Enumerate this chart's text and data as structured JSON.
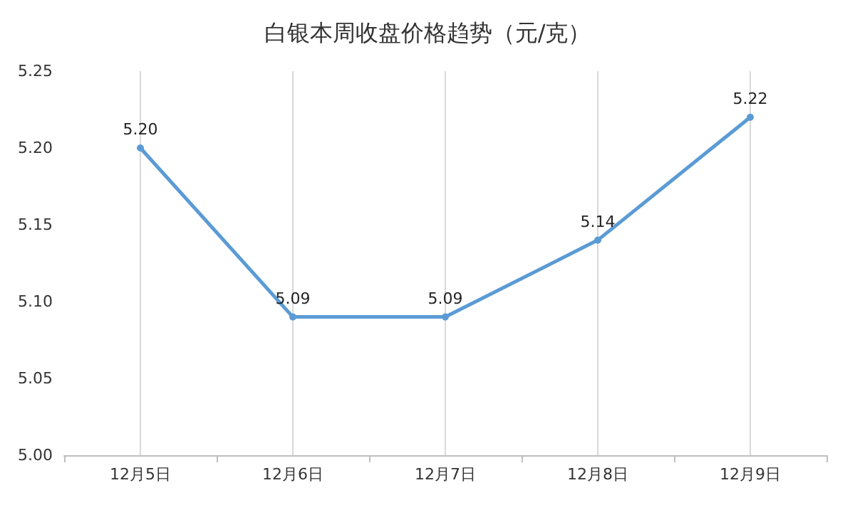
{
  "chart_data": {
    "type": "line",
    "title": "白银本周收盘价格趋势（元/克）",
    "categories": [
      "12月5日",
      "12月6日",
      "12月7日",
      "12月8日",
      "12月9日"
    ],
    "series": [
      {
        "color": "#5b9bd5",
        "values": [
          5.2,
          5.09,
          5.09,
          5.14,
          5.22
        ],
        "value_labels": [
          "5.20",
          "5.09",
          "5.09",
          "5.14",
          "5.22"
        ]
      }
    ],
    "ylim": [
      5.0,
      5.25
    ],
    "yticks": [
      {
        "value": 5.0,
        "label": "5.00"
      },
      {
        "value": 5.05,
        "label": "5.05"
      },
      {
        "value": 5.1,
        "label": "5.10"
      },
      {
        "value": 5.15,
        "label": "5.15"
      },
      {
        "value": 5.2,
        "label": "5.20"
      },
      {
        "value": 5.25,
        "label": "5.25"
      }
    ],
    "grid": "x",
    "marker": "circle",
    "line_style": "solid"
  }
}
